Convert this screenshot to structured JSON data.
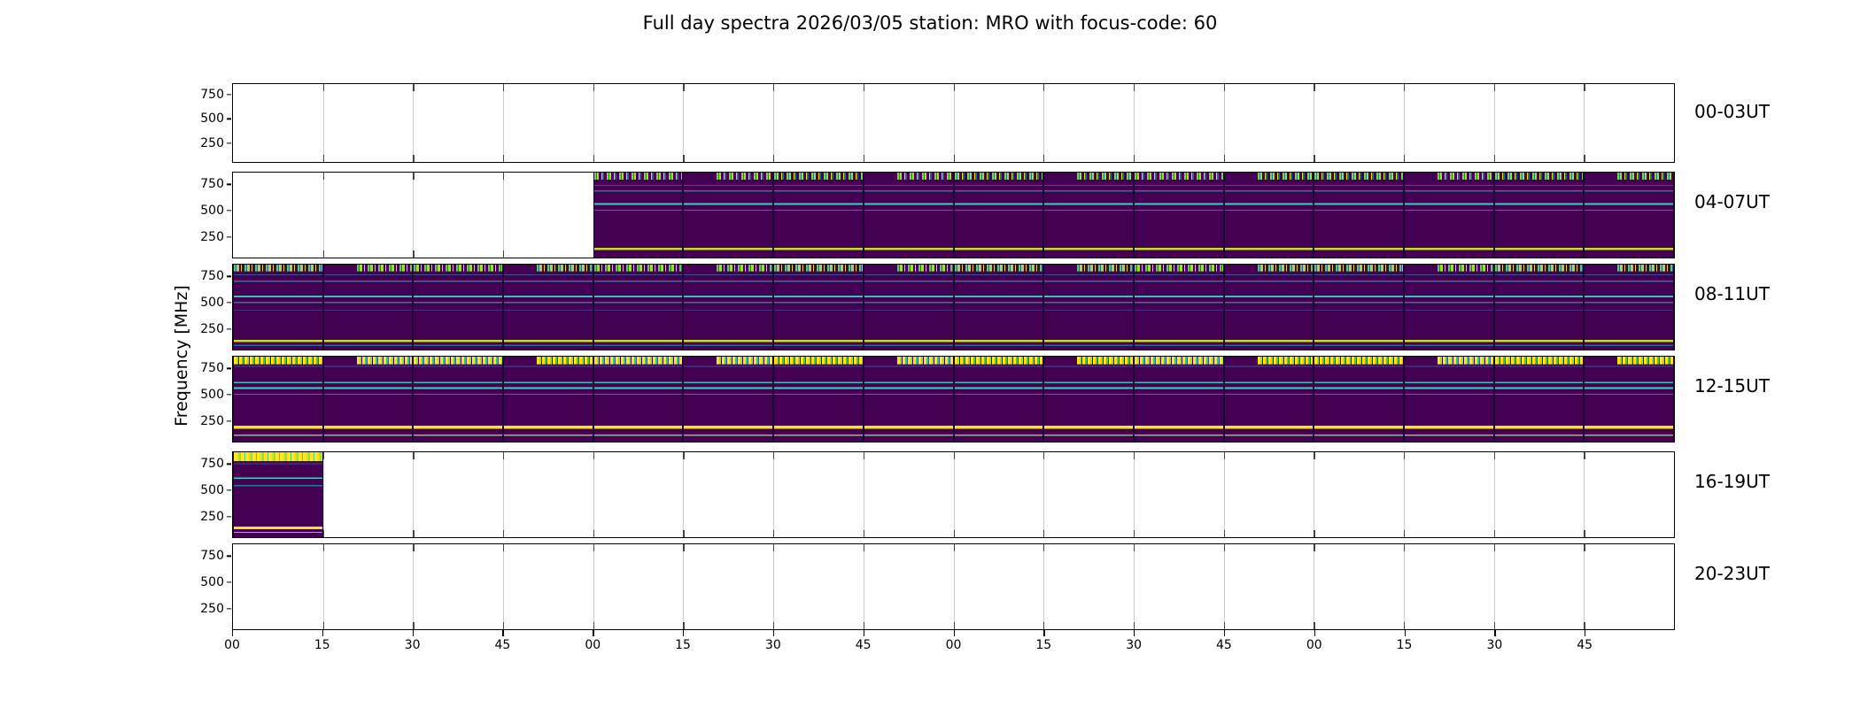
{
  "title": "Full day spectra 2026/03/05 station: MRO with focus-code: 60",
  "colors": {
    "background": "#ffffff",
    "panel_border": "#000000",
    "spectrogram_base": "#440154",
    "rfi_band_green": "#7ad151",
    "rfi_band_yellow": "#fde725",
    "carrier_cyan": "#3bd0c0",
    "carrier_teal": "#2a788e",
    "fm_band_yellow_green": "#c2df23"
  },
  "chart_data": {
    "type": "heatmap",
    "title": "Full day spectra 2026/03/05 station: MRO with focus-code: 60",
    "date": "2026/03/05",
    "station": "MRO",
    "focus_code": "60",
    "ylabel": "Frequency [MHz]",
    "y_tick_labels": [
      "750",
      "500",
      "250"
    ],
    "y_axis_range_mhz": [
      45,
      870
    ],
    "x_tick_labels": [
      "00",
      "15",
      "30",
      "45",
      "00",
      "15",
      "30",
      "45",
      "00",
      "15",
      "30",
      "45",
      "00",
      "15",
      "30",
      "45"
    ],
    "minutes_per_slot": 15,
    "hours_per_row": 4,
    "slots_per_row": 16,
    "grid": true,
    "legend": "none",
    "rows": [
      {
        "label": "00-03UT",
        "style": "none",
        "seg_start": 0,
        "seg_count": 0,
        "coverage": "no data"
      },
      {
        "label": "04-07UT",
        "style": "a",
        "seg_start": 4,
        "seg_count": 12,
        "coverage": "data from 05:00 to 08:00 UT"
      },
      {
        "label": "08-11UT",
        "style": "b",
        "seg_start": 0,
        "seg_count": 16,
        "coverage": "data for full interval"
      },
      {
        "label": "12-15UT",
        "style": "c",
        "seg_start": 0,
        "seg_count": 16,
        "coverage": "data for full interval"
      },
      {
        "label": "16-19UT",
        "style": "d",
        "seg_start": 0,
        "seg_count": 1,
        "coverage": "data from 16:00 to 16:15 UT"
      },
      {
        "label": "20-23UT",
        "style": "none",
        "seg_start": 0,
        "seg_count": 0,
        "coverage": "no data"
      }
    ],
    "bright_horizontal_features_mhz": {
      "a": [
        820,
        700,
        560,
        510,
        140
      ],
      "b": [
        820,
        730,
        690,
        560,
        510,
        430,
        140,
        80
      ],
      "c": [
        830,
        730,
        620,
        560,
        510,
        180,
        105
      ],
      "d": [
        830,
        720,
        620,
        540,
        135,
        85
      ]
    }
  }
}
